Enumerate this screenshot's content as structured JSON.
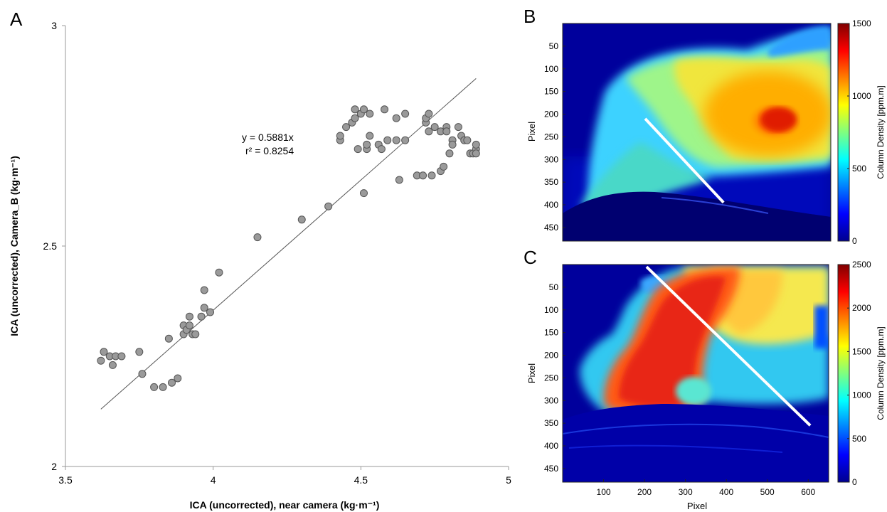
{
  "panels": {
    "a_label": "A",
    "b_label": "B",
    "c_label": "C"
  },
  "colors": {
    "point_fill": "#9a9a9a",
    "point_stroke": "#555555",
    "axis": "#999999",
    "fit_line": "#555555",
    "map_background": "#00009c",
    "transect": "#ffffff"
  },
  "colormap": "jet",
  "chart_data": [
    {
      "panel": "A",
      "type": "scatter",
      "title": "",
      "xlabel": "ICA (uncorrected), near camera (kg·m⁻¹)",
      "ylabel": "ICA (uncorrected), Camera_B (kg·m⁻¹)",
      "xlim": [
        3.5,
        5
      ],
      "ylim": [
        2,
        3
      ],
      "xticks": [
        "3.5",
        "4",
        "4.5",
        "5"
      ],
      "yticks": [
        "2",
        "2.5",
        "3"
      ],
      "grid": false,
      "fit": {
        "equation": "y = 0.5881x",
        "r2_label": "r² = 0.8254",
        "x_range": [
          3.62,
          4.89
        ],
        "y_range": [
          2.13,
          2.88
        ]
      },
      "points": [
        [
          3.62,
          2.24
        ],
        [
          3.63,
          2.26
        ],
        [
          3.65,
          2.25
        ],
        [
          3.66,
          2.23
        ],
        [
          3.67,
          2.25
        ],
        [
          3.69,
          2.25
        ],
        [
          3.75,
          2.26
        ],
        [
          3.76,
          2.21
        ],
        [
          3.8,
          2.18
        ],
        [
          3.83,
          2.18
        ],
        [
          3.85,
          2.29
        ],
        [
          3.86,
          2.19
        ],
        [
          3.88,
          2.2
        ],
        [
          3.9,
          2.3
        ],
        [
          3.9,
          2.32
        ],
        [
          3.91,
          2.31
        ],
        [
          3.92,
          2.32
        ],
        [
          3.92,
          2.34
        ],
        [
          3.93,
          2.3
        ],
        [
          3.94,
          2.3
        ],
        [
          3.96,
          2.34
        ],
        [
          3.97,
          2.36
        ],
        [
          3.97,
          2.4
        ],
        [
          3.99,
          2.35
        ],
        [
          4.02,
          2.44
        ],
        [
          4.15,
          2.52
        ],
        [
          4.3,
          2.56
        ],
        [
          4.39,
          2.59
        ],
        [
          4.43,
          2.74
        ],
        [
          4.43,
          2.75
        ],
        [
          4.45,
          2.77
        ],
        [
          4.47,
          2.78
        ],
        [
          4.48,
          2.79
        ],
        [
          4.48,
          2.81
        ],
        [
          4.49,
          2.72
        ],
        [
          4.5,
          2.8
        ],
        [
          4.51,
          2.81
        ],
        [
          4.51,
          2.62
        ],
        [
          4.52,
          2.72
        ],
        [
          4.52,
          2.73
        ],
        [
          4.53,
          2.75
        ],
        [
          4.53,
          2.8
        ],
        [
          4.56,
          2.73
        ],
        [
          4.57,
          2.72
        ],
        [
          4.58,
          2.81
        ],
        [
          4.59,
          2.74
        ],
        [
          4.62,
          2.79
        ],
        [
          4.62,
          2.74
        ],
        [
          4.63,
          2.65
        ],
        [
          4.65,
          2.74
        ],
        [
          4.65,
          2.8
        ],
        [
          4.69,
          2.66
        ],
        [
          4.71,
          2.66
        ],
        [
          4.72,
          2.78
        ],
        [
          4.72,
          2.79
        ],
        [
          4.73,
          2.8
        ],
        [
          4.73,
          2.76
        ],
        [
          4.74,
          2.66
        ],
        [
          4.75,
          2.77
        ],
        [
          4.77,
          2.76
        ],
        [
          4.77,
          2.67
        ],
        [
          4.78,
          2.68
        ],
        [
          4.79,
          2.77
        ],
        [
          4.79,
          2.76
        ],
        [
          4.8,
          2.71
        ],
        [
          4.81,
          2.74
        ],
        [
          4.81,
          2.73
        ],
        [
          4.83,
          2.77
        ],
        [
          4.84,
          2.75
        ],
        [
          4.85,
          2.74
        ],
        [
          4.86,
          2.74
        ],
        [
          4.87,
          2.71
        ],
        [
          4.88,
          2.71
        ],
        [
          4.89,
          2.72
        ],
        [
          4.89,
          2.73
        ],
        [
          4.89,
          2.71
        ]
      ]
    },
    {
      "panel": "B",
      "type": "heatmap",
      "xlabel": "",
      "ylabel": "Pixel",
      "yticks": [
        "50",
        "100",
        "150",
        "200",
        "250",
        "300",
        "350",
        "400",
        "450"
      ],
      "colorbar": {
        "label": "Column Density [ppm.m]",
        "range": [
          0,
          1500
        ],
        "ticks": [
          "1500",
          "1000",
          "500",
          "0"
        ]
      },
      "transect": {
        "from": [
          200,
          210
        ],
        "to": [
          390,
          395
        ]
      }
    },
    {
      "panel": "C",
      "type": "heatmap",
      "xlabel": "Pixel",
      "ylabel": "Pixel",
      "xticks": [
        "100",
        "200",
        "300",
        "400",
        "500",
        "600"
      ],
      "yticks": [
        "50",
        "100",
        "150",
        "200",
        "250",
        "300",
        "350",
        "400",
        "450"
      ],
      "colorbar": {
        "label": "Column Density [ppm.m]",
        "range": [
          0,
          2500
        ],
        "ticks": [
          "2500",
          "2000",
          "1500",
          "1000",
          "500",
          "0"
        ]
      },
      "transect": {
        "from": [
          205,
          5
        ],
        "to": [
          605,
          355
        ]
      }
    }
  ]
}
